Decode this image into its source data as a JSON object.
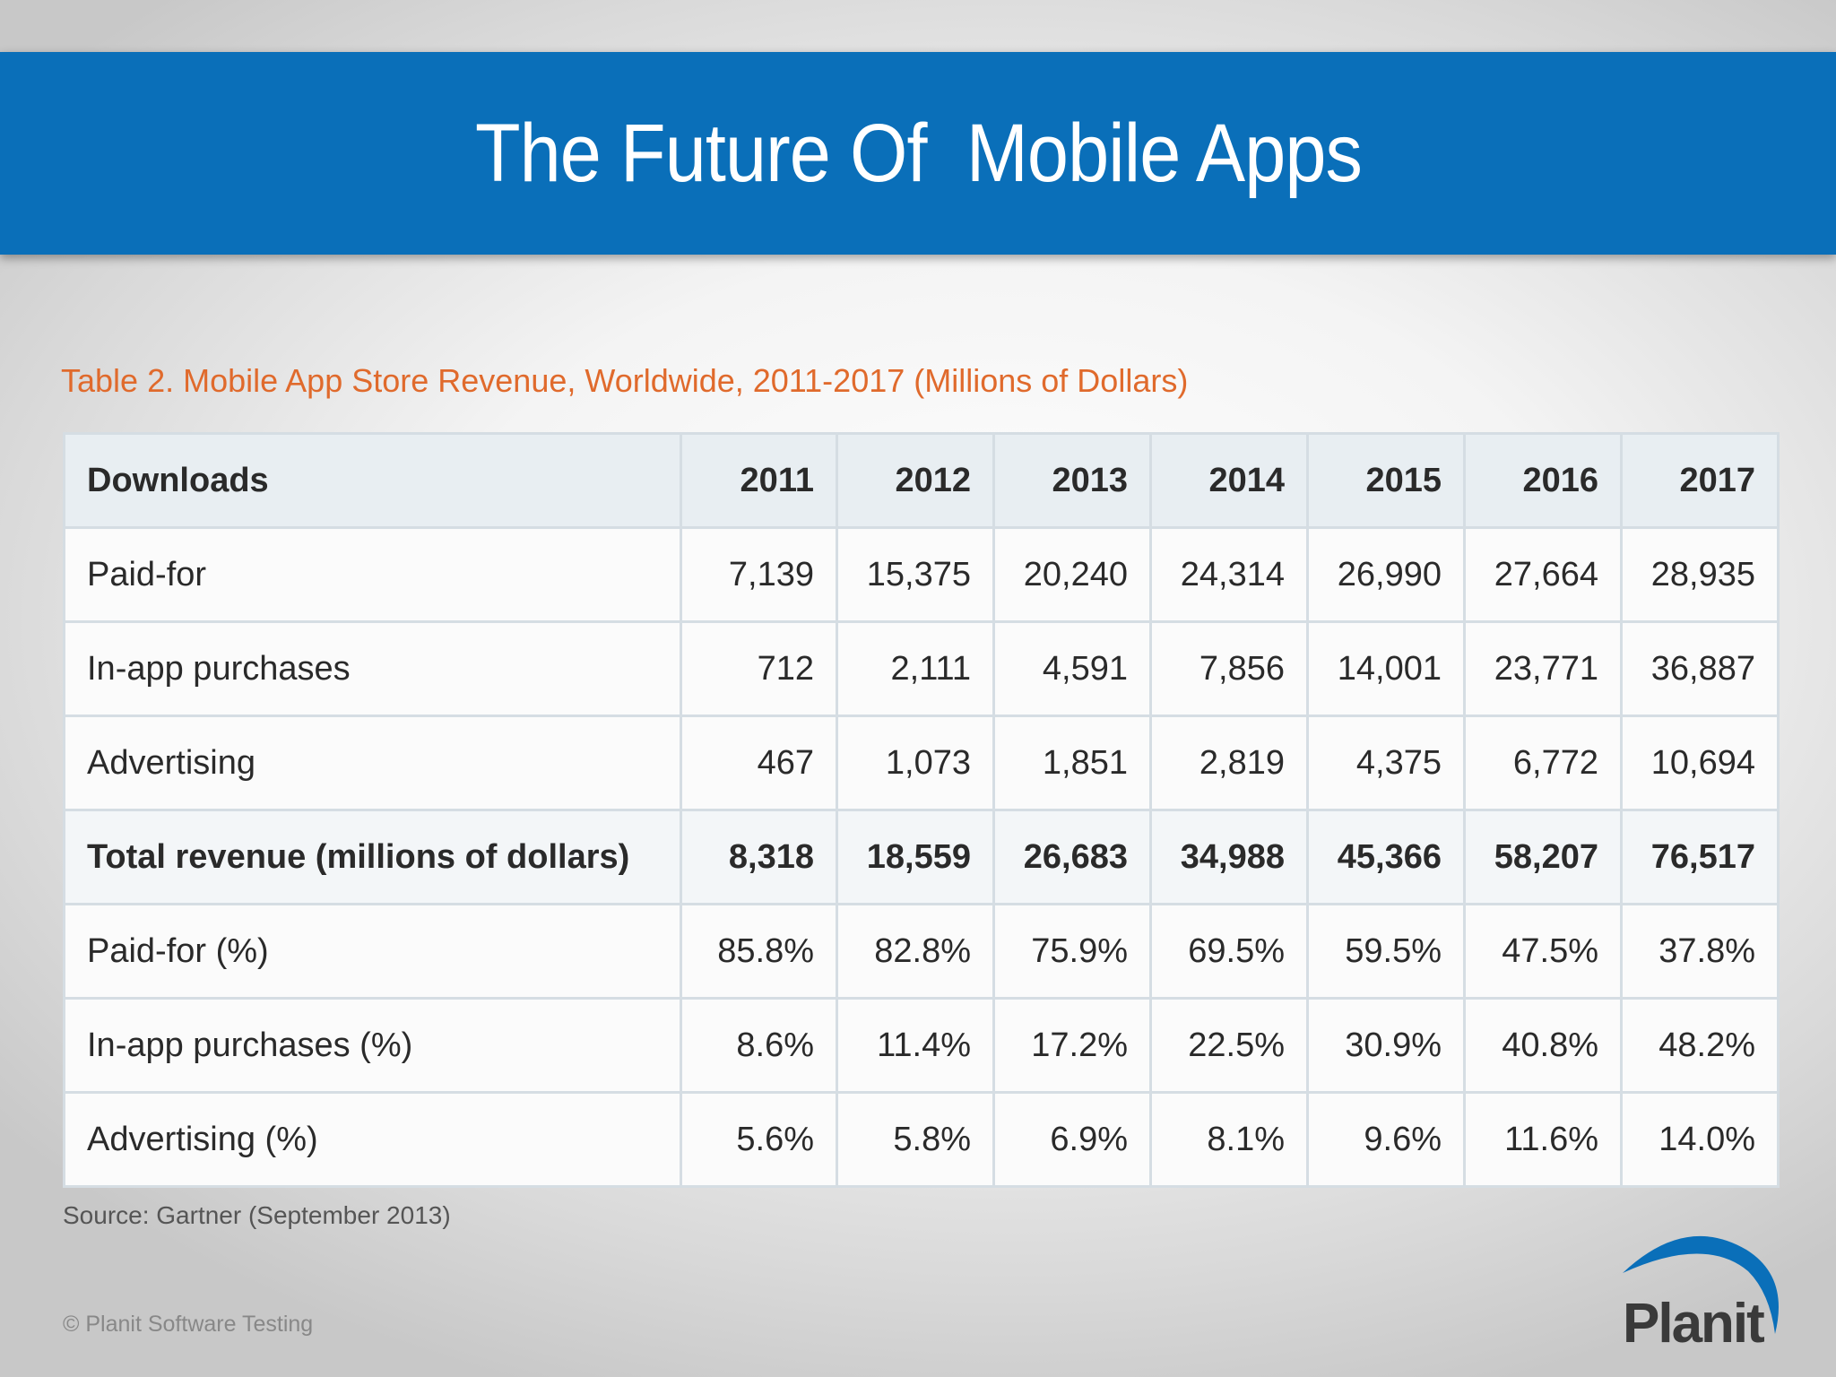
{
  "slide": {
    "title": "The Future Of  Mobile Apps",
    "footer": "© Planit Software Testing",
    "logo_text": "Planit",
    "banner_color": "#0a6fb9",
    "caption_color": "#e06a2c"
  },
  "chart_data": {
    "type": "table",
    "title": "Table 2. Mobile App Store Revenue, Worldwide, 2011-2017 (Millions of Dollars)",
    "columns": [
      "Downloads",
      "2011",
      "2012",
      "2013",
      "2014",
      "2015",
      "2016",
      "2017"
    ],
    "rows": [
      {
        "label": "Paid-for",
        "values": [
          "7,139",
          "15,375",
          "20,240",
          "24,314",
          "26,990",
          "27,664",
          "28,935"
        ],
        "bold": false
      },
      {
        "label": "In-app purchases",
        "values": [
          "712",
          "2,111",
          "4,591",
          "7,856",
          "14,001",
          "23,771",
          "36,887"
        ],
        "bold": false
      },
      {
        "label": "Advertising",
        "values": [
          "467",
          "1,073",
          "1,851",
          "2,819",
          "4,375",
          "6,772",
          "10,694"
        ],
        "bold": false
      },
      {
        "label": "Total revenue (millions of dollars)",
        "values": [
          "8,318",
          "18,559",
          "26,683",
          "34,988",
          "45,366",
          "58,207",
          "76,517"
        ],
        "bold": true
      },
      {
        "label": "Paid-for (%)",
        "values": [
          "85.8%",
          "82.8%",
          "75.9%",
          "69.5%",
          "59.5%",
          "47.5%",
          "37.8%"
        ],
        "bold": false
      },
      {
        "label": "In-app purchases (%)",
        "values": [
          "8.6%",
          "11.4%",
          "17.2%",
          "22.5%",
          "30.9%",
          "40.8%",
          "48.2%"
        ],
        "bold": false
      },
      {
        "label": "Advertising (%)",
        "values": [
          "5.6%",
          "5.8%",
          "6.9%",
          "8.1%",
          "9.6%",
          "11.6%",
          "14.0%"
        ],
        "bold": false
      }
    ],
    "source": "Source: Gartner (September 2013)"
  }
}
